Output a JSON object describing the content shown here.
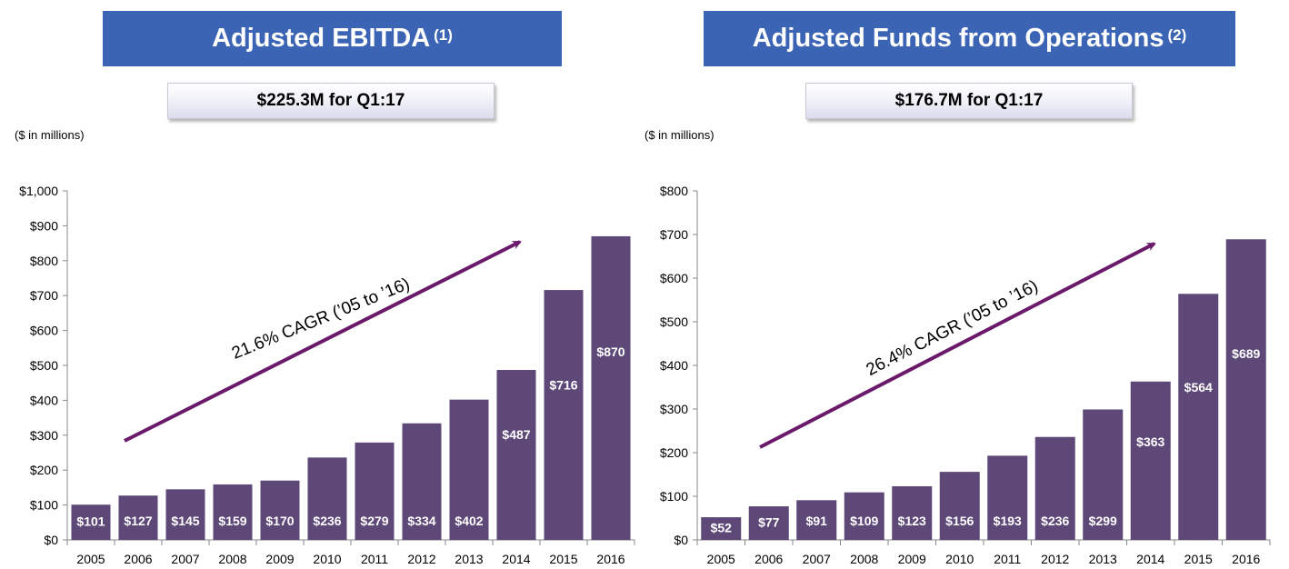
{
  "colors": {
    "banner": "#3c64b4",
    "bar": "#5e4878",
    "arrow": "#6b1a6b"
  },
  "chart_data": [
    {
      "type": "bar",
      "title": "Adjusted EBITDA",
      "title_note": "(1)",
      "subtitle": "$225.3M for Q1:17",
      "units_label": "($ in millions)",
      "categories": [
        "2005",
        "2006",
        "2007",
        "2008",
        "2009",
        "2010",
        "2011",
        "2012",
        "2013",
        "2014",
        "2015",
        "2016"
      ],
      "values": [
        101,
        127,
        145,
        159,
        170,
        236,
        279,
        334,
        402,
        487,
        716,
        870
      ],
      "value_labels": [
        "$101",
        "$127",
        "$145",
        "$159",
        "$170",
        "$236",
        "$279",
        "$334",
        "$402",
        "$487",
        "$716",
        "$870"
      ],
      "ylim": [
        0,
        1000
      ],
      "yticks": [
        0,
        100,
        200,
        300,
        400,
        500,
        600,
        700,
        800,
        900,
        1000
      ],
      "ytick_labels": [
        "$0",
        "$100",
        "$200",
        "$300",
        "$400",
        "$500",
        "$600",
        "$700",
        "$800",
        "$900",
        "$1,000"
      ],
      "annotation": "21.6% CAGR (’05 to ’16)"
    },
    {
      "type": "bar",
      "title": "Adjusted Funds from Operations",
      "title_note": "(2)",
      "subtitle": "$176.7M for Q1:17",
      "units_label": "($ in millions)",
      "categories": [
        "2005",
        "2006",
        "2007",
        "2008",
        "2009",
        "2010",
        "2011",
        "2012",
        "2013",
        "2014",
        "2015",
        "2016"
      ],
      "values": [
        52,
        77,
        91,
        109,
        123,
        156,
        193,
        236,
        299,
        363,
        564,
        689
      ],
      "value_labels": [
        "$52",
        "$77",
        "$91",
        "$109",
        "$123",
        "$156",
        "$193",
        "$236",
        "$299",
        "$363",
        "$564",
        "$689"
      ],
      "ylim": [
        0,
        800
      ],
      "yticks": [
        0,
        100,
        200,
        300,
        400,
        500,
        600,
        700,
        800
      ],
      "ytick_labels": [
        "$0",
        "$100",
        "$200",
        "$300",
        "$400",
        "$500",
        "$600",
        "$700",
        "$800"
      ],
      "annotation": "26.4% CAGR (’05 to ’16)"
    }
  ]
}
